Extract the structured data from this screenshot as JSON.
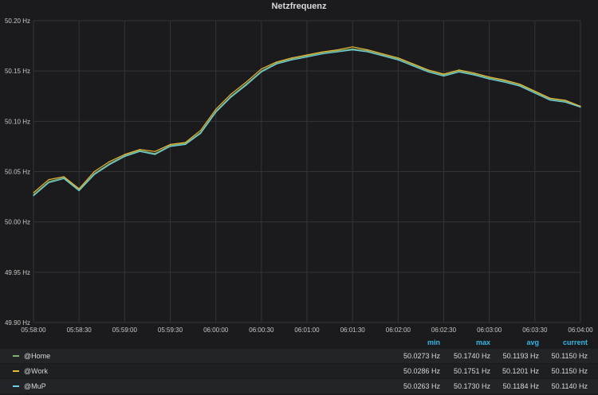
{
  "panel": {
    "title": "Netzfrequenz"
  },
  "chart_data": {
    "type": "line",
    "title": "Netzfrequenz",
    "xlabel": "",
    "ylabel": "",
    "x_ticks": [
      "05:58:00",
      "05:58:30",
      "05:59:00",
      "05:59:30",
      "06:00:00",
      "06:00:30",
      "06:01:00",
      "06:01:30",
      "06:02:00",
      "06:02:30",
      "06:03:00",
      "06:03:30",
      "06:04:00"
    ],
    "y_ticks": [
      "49.90 Hz",
      "49.95 Hz",
      "50.00 Hz",
      "50.05 Hz",
      "50.10 Hz",
      "50.15 Hz",
      "50.20 Hz"
    ],
    "ylim": [
      49.9,
      50.2
    ],
    "xlim": [
      "05:58:00",
      "06:04:00"
    ],
    "grid": true,
    "x_time": [
      "05:58:00",
      "05:58:10",
      "05:58:20",
      "05:58:30",
      "05:58:40",
      "05:58:50",
      "05:59:00",
      "05:59:10",
      "05:59:20",
      "05:59:30",
      "05:59:40",
      "05:59:50",
      "06:00:00",
      "06:00:10",
      "06:00:20",
      "06:00:30",
      "06:00:40",
      "06:00:50",
      "06:01:00",
      "06:01:10",
      "06:01:20",
      "06:01:30",
      "06:01:40",
      "06:01:50",
      "06:02:00",
      "06:02:10",
      "06:02:20",
      "06:02:30",
      "06:02:40",
      "06:02:50",
      "06:03:00",
      "06:03:10",
      "06:03:20",
      "06:03:30",
      "06:03:40",
      "06:03:50",
      "06:04:00"
    ],
    "series": [
      {
        "name": "@Home",
        "color": "#7eb26d",
        "values": [
          50.027,
          50.04,
          50.044,
          50.032,
          50.048,
          50.058,
          50.066,
          50.071,
          50.068,
          50.076,
          50.078,
          50.089,
          50.11,
          50.125,
          50.137,
          50.15,
          50.158,
          50.162,
          50.165,
          50.168,
          50.17,
          50.172,
          50.17,
          50.166,
          50.162,
          50.156,
          50.15,
          50.146,
          50.15,
          50.147,
          50.143,
          50.14,
          50.136,
          50.129,
          50.122,
          50.12,
          50.115
        ]
      },
      {
        "name": "@Work",
        "color": "#eab839",
        "values": [
          50.029,
          50.042,
          50.045,
          50.033,
          50.05,
          50.06,
          50.067,
          50.072,
          50.07,
          50.077,
          50.079,
          50.091,
          50.112,
          50.127,
          50.139,
          50.152,
          50.159,
          50.163,
          50.166,
          50.169,
          50.171,
          50.174,
          50.171,
          50.167,
          50.163,
          50.157,
          50.151,
          50.147,
          50.151,
          50.148,
          50.144,
          50.141,
          50.137,
          50.13,
          50.123,
          50.121,
          50.115
        ]
      },
      {
        "name": "@MuP",
        "color": "#6ed0e0",
        "values": [
          50.026,
          50.039,
          50.043,
          50.031,
          50.047,
          50.057,
          50.065,
          50.07,
          50.067,
          50.075,
          50.077,
          50.088,
          50.109,
          50.124,
          50.136,
          50.149,
          50.157,
          50.161,
          50.164,
          50.167,
          50.169,
          50.171,
          50.169,
          50.165,
          50.161,
          50.155,
          50.149,
          50.145,
          50.149,
          50.146,
          50.142,
          50.139,
          50.135,
          50.128,
          50.121,
          50.119,
          50.114
        ]
      }
    ]
  },
  "legend": {
    "headers": {
      "min": "min",
      "max": "max",
      "avg": "avg",
      "current": "current"
    },
    "rows": [
      {
        "name": "@Home",
        "color": "#7eb26d",
        "min": "50.0273 Hz",
        "max": "50.1740 Hz",
        "avg": "50.1193 Hz",
        "current": "50.1150 Hz"
      },
      {
        "name": "@Work",
        "color": "#eab839",
        "min": "50.0286 Hz",
        "max": "50.1751 Hz",
        "avg": "50.1201 Hz",
        "current": "50.1150 Hz"
      },
      {
        "name": "@MuP",
        "color": "#6ed0e0",
        "min": "50.0263 Hz",
        "max": "50.1730 Hz",
        "avg": "50.1184 Hz",
        "current": "50.1140 Hz"
      }
    ]
  }
}
